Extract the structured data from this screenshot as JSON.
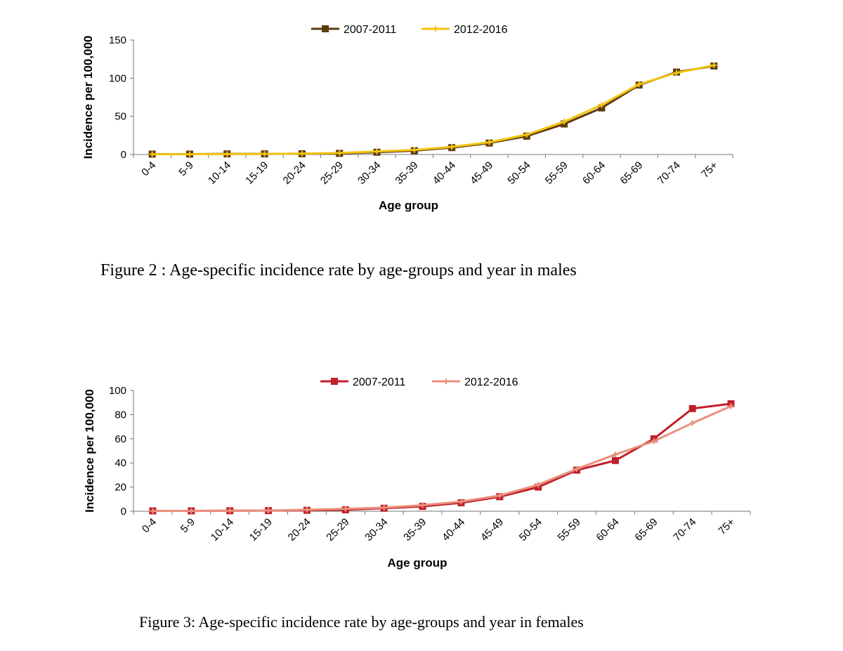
{
  "charts": [
    {
      "type": "line",
      "title": "",
      "xlabel": "Age group",
      "ylabel": "Incidence per 100,000",
      "ylim": [
        0,
        150
      ],
      "yticks": [
        0,
        50,
        100,
        150
      ],
      "categories": [
        "0-4",
        "5-9",
        "10-14",
        "15-19",
        "20-24",
        "25-29",
        "30-34",
        "35-39",
        "40-44",
        "45-49",
        "50-54",
        "55-59",
        "60-64",
        "65-69",
        "70-74",
        "75+"
      ],
      "series": [
        {
          "name": "2007-2011",
          "color": "#5c3a10",
          "marker": "square",
          "values": [
            0.5,
            0.5,
            0.8,
            0.8,
            1,
            1.5,
            3,
            5,
            9,
            15,
            24,
            40,
            61,
            91,
            108,
            116
          ]
        },
        {
          "name": "2012-2016",
          "color": "#f2c40f",
          "marker": "cross",
          "values": [
            0.3,
            0.4,
            0.6,
            0.8,
            1.2,
            2,
            4,
            6,
            10,
            16,
            26,
            43,
            65,
            92,
            107,
            117
          ]
        }
      ],
      "caption": "Figure 2 :  Age-specific incidence rate by age-groups and year in males"
    },
    {
      "type": "line",
      "title": "",
      "xlabel": "Age group",
      "ylabel": "Incidence per 100,000",
      "ylim": [
        0,
        100
      ],
      "yticks": [
        0,
        20,
        40,
        60,
        80,
        100
      ],
      "categories": [
        "0-4",
        "5-9",
        "10-14",
        "15-19",
        "20-24",
        "25-29",
        "30-34",
        "35-39",
        "40-44",
        "45-49",
        "50-54",
        "55-59",
        "60-64",
        "65-69",
        "70-74",
        "75+"
      ],
      "series": [
        {
          "name": "2007-2011",
          "color": "#c0202a",
          "marker": "square",
          "values": [
            0.3,
            0.3,
            0.4,
            0.5,
            0.8,
            1.2,
            2.5,
            4,
            7,
            12,
            20,
            34,
            42,
            60,
            85,
            89
          ]
        },
        {
          "name": "2012-2016",
          "color": "#e9907c",
          "marker": "cross",
          "values": [
            0.2,
            0.3,
            0.4,
            0.6,
            1.2,
            2,
            3,
            5,
            8,
            13,
            22,
            35,
            47,
            58,
            73,
            87
          ]
        }
      ],
      "caption": "Figure 3:  Age-specific incidence rate by age-groups and year in females"
    }
  ]
}
